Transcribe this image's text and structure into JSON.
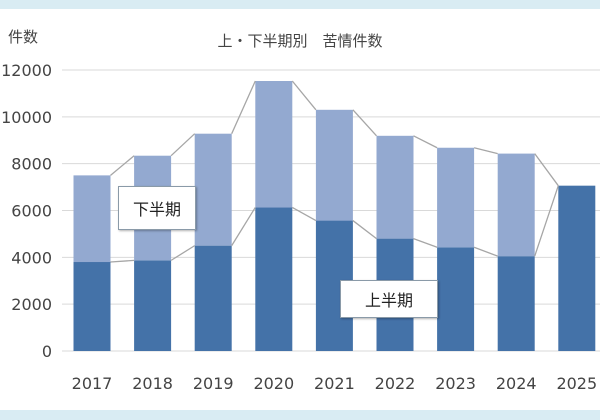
{
  "chart_data": {
    "type": "bar",
    "stacked": true,
    "title": "上・下半期別　苦情件数",
    "ylabel": "件数",
    "xlabel": "",
    "ylim": [
      0,
      12000
    ],
    "yticks": [
      "0",
      "2000",
      "4000",
      "6000",
      "8000",
      "10000",
      "12000"
    ],
    "categories": [
      "2017",
      "2018",
      "2019",
      "2020",
      "2021",
      "2022",
      "2023",
      "2024",
      "2025"
    ],
    "series": [
      {
        "name": "上半期",
        "color": "#4472a8",
        "values": [
          3800,
          3870,
          4500,
          6130,
          5570,
          4800,
          4430,
          4050,
          7060
        ]
      },
      {
        "name": "下半期",
        "color": "#93a9d0",
        "values": [
          3700,
          4470,
          4780,
          5400,
          4730,
          4390,
          4250,
          4380,
          null
        ]
      }
    ],
    "grid": true,
    "annotations": [
      "下半期",
      "上半期"
    ],
    "series_lines": true
  }
}
